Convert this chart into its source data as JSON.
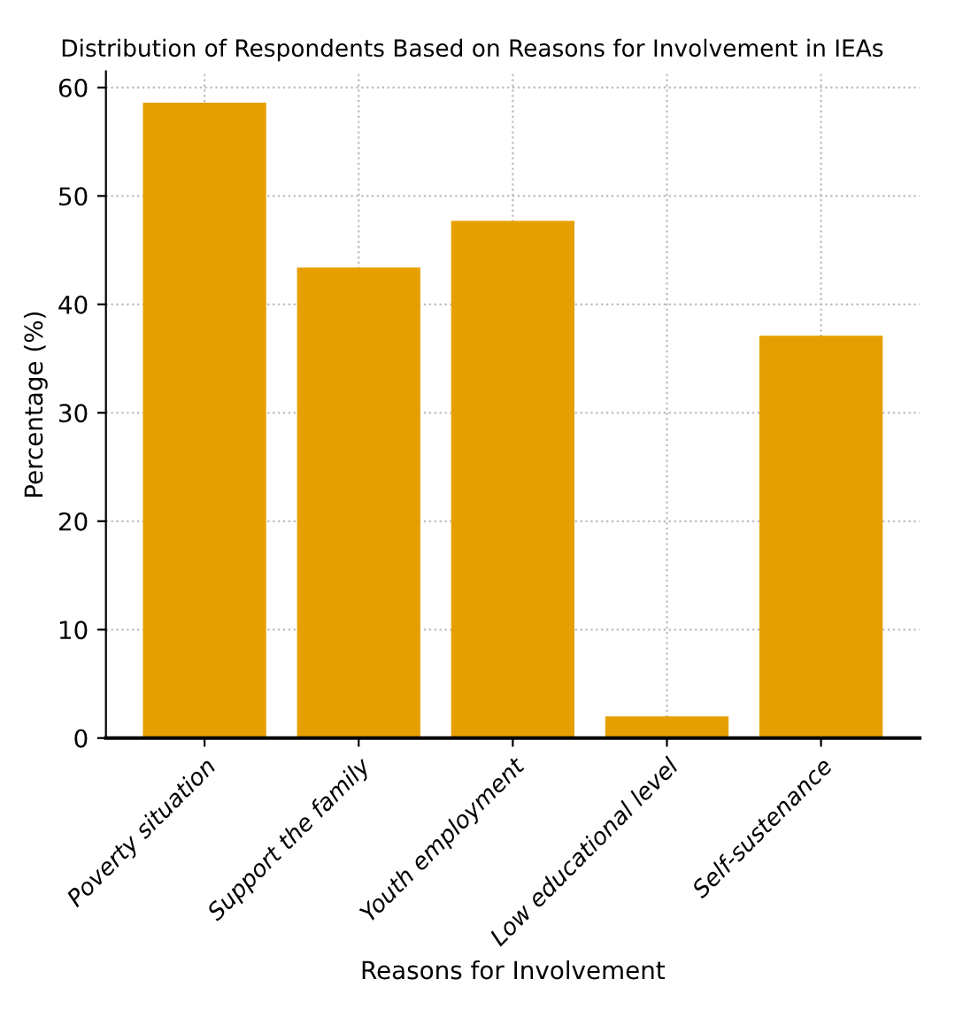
{
  "chart_data": {
    "type": "bar",
    "title": "Distribution of Respondents Based on Reasons for Involvement in IEAs",
    "xlabel": "Reasons for Involvement",
    "ylabel": "Percentage (%)",
    "categories": [
      "Poverty situation",
      "Support the family",
      "Youth employment",
      "Low educational level",
      "Self-sustenance"
    ],
    "values": [
      58.6,
      43.4,
      47.7,
      2.0,
      37.1
    ],
    "color": "#e69f00",
    "ylim": [
      0,
      61.5
    ],
    "yticks": [
      0,
      10,
      20,
      30,
      40,
      50,
      60
    ],
    "grid": true
  }
}
